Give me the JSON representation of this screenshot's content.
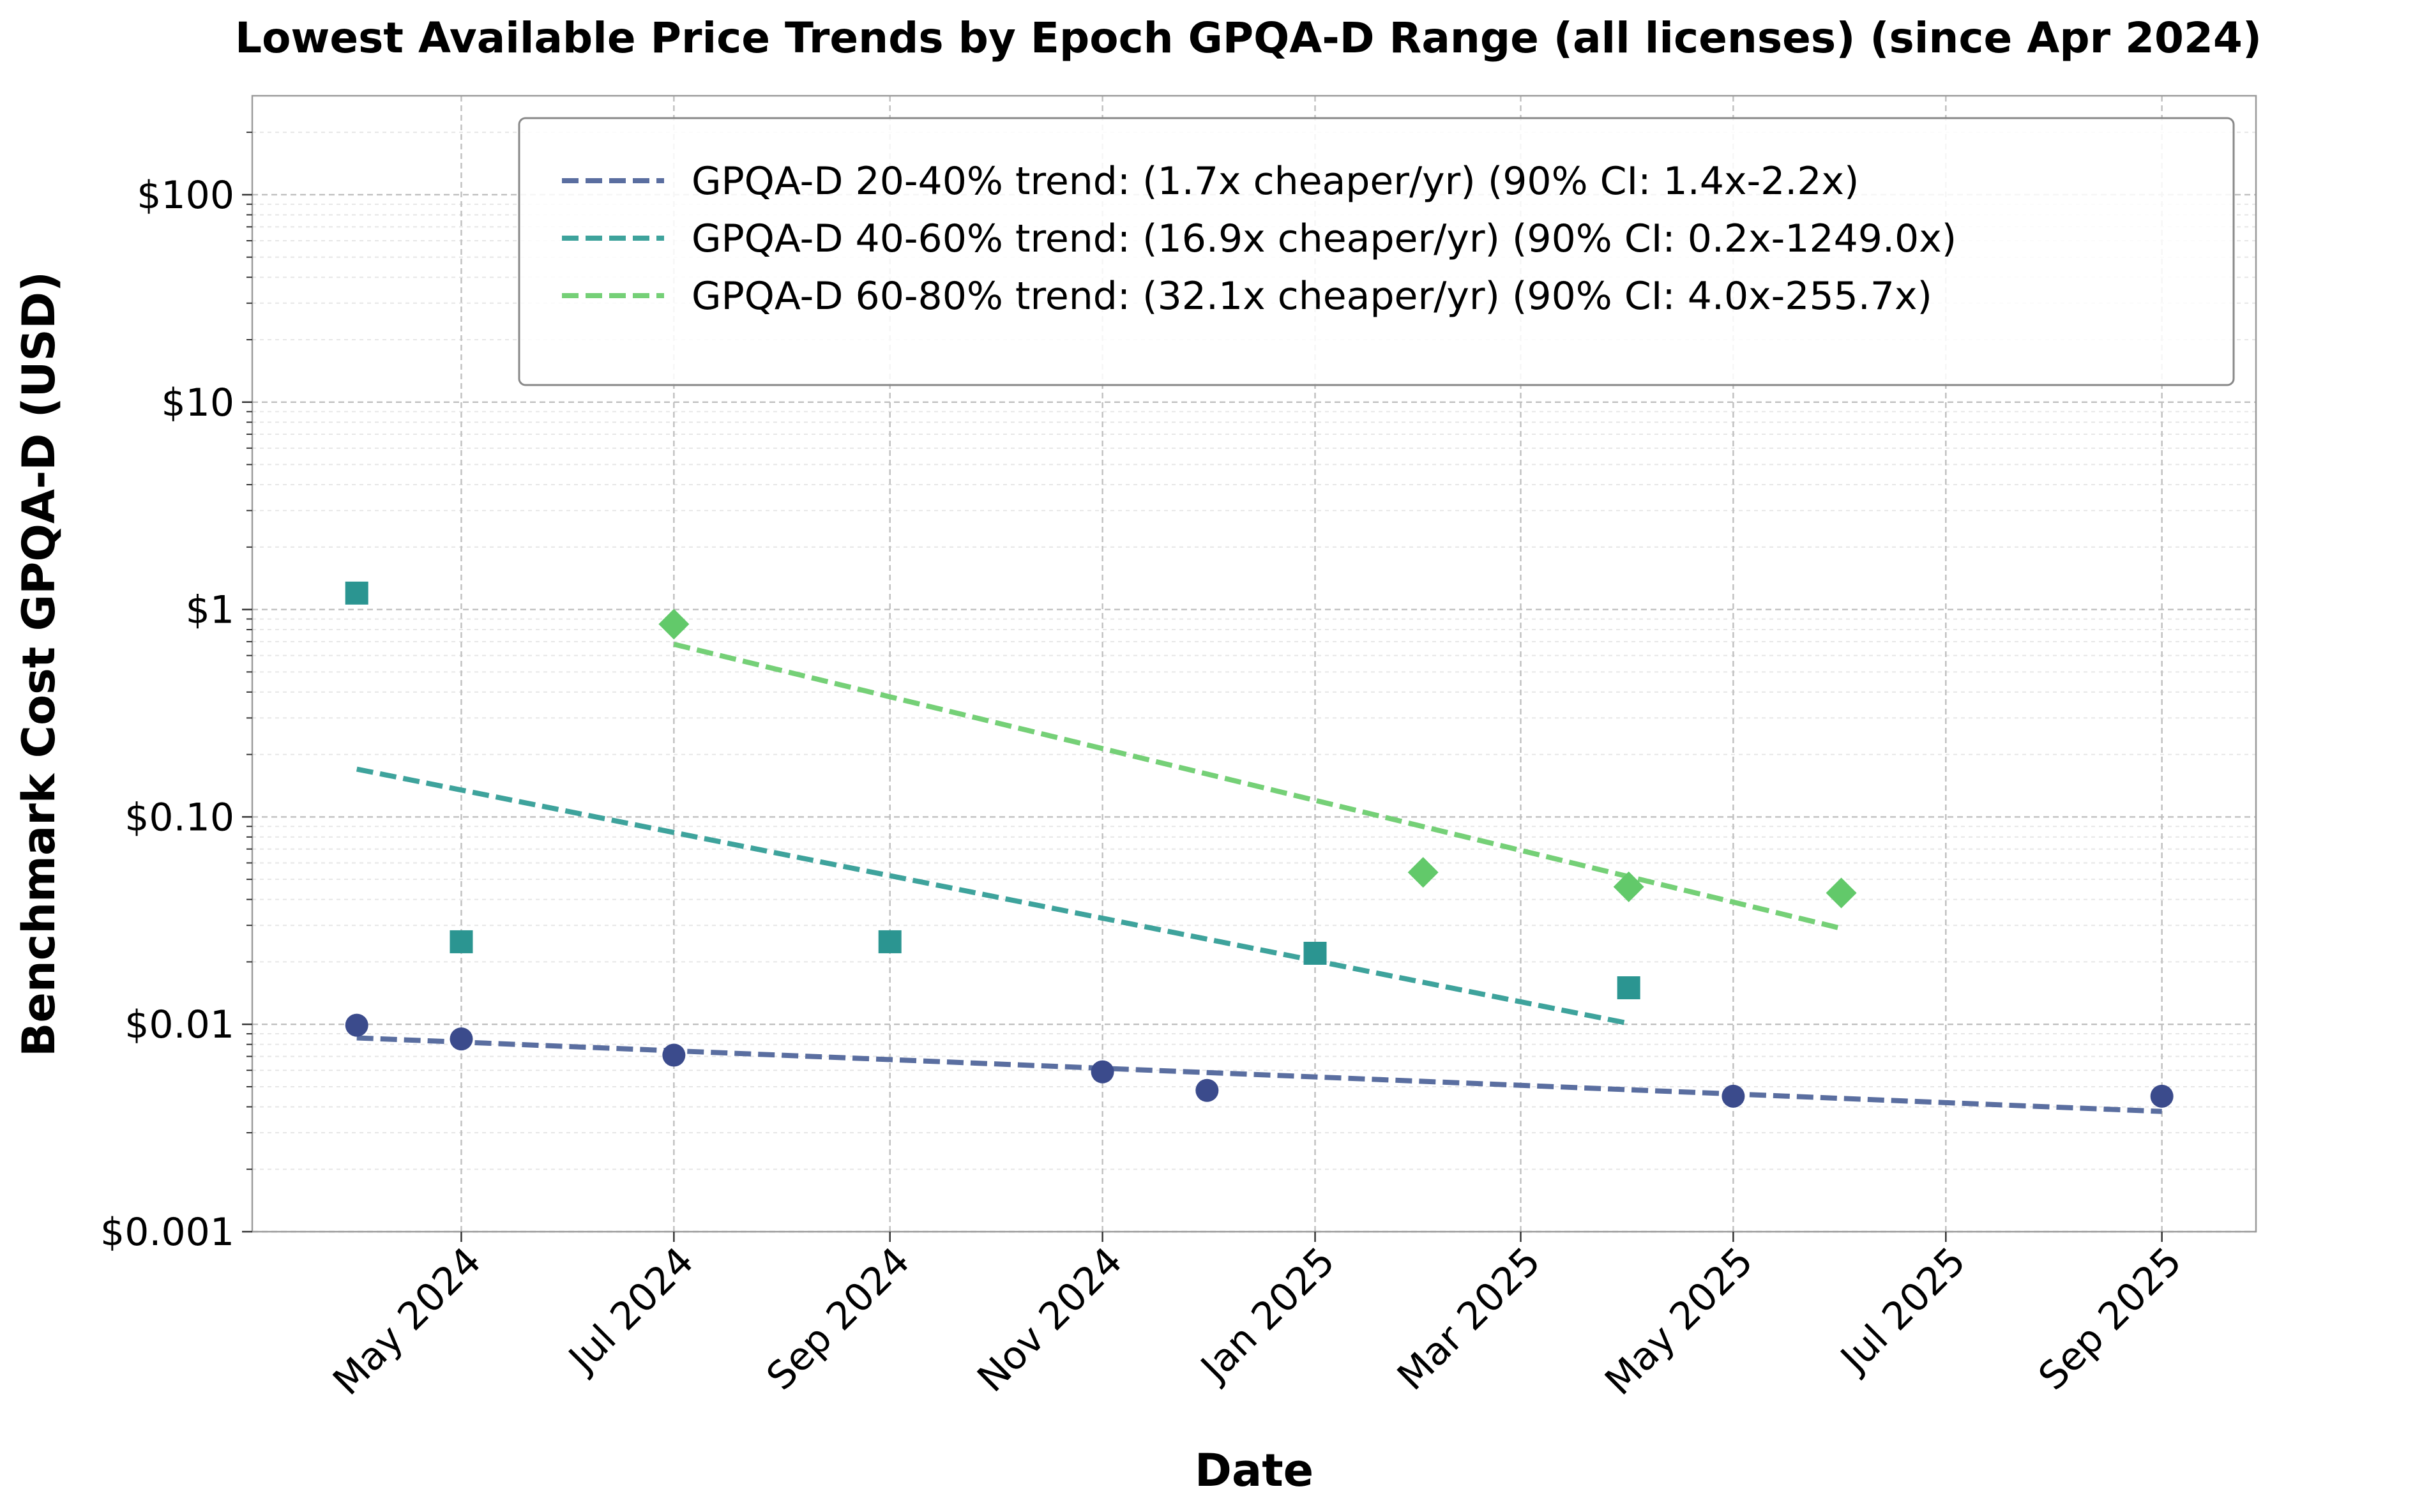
{
  "chart_data": {
    "type": "scatter",
    "title": "Lowest Available Price Trends by Epoch GPQA-D Range (all licenses) (since Apr 2024)",
    "xlabel": "Date",
    "ylabel": "Benchmark Cost GPQA-D (USD)",
    "y_scale": "log",
    "ylim": [
      0.001,
      300
    ],
    "xlim": [
      "2024-03-02",
      "2025-09-28"
    ],
    "grid": true,
    "legend_position": "upper-right",
    "x_ticks": [
      {
        "date": "2024-05-01",
        "label": "May 2024"
      },
      {
        "date": "2024-07-01",
        "label": "Jul 2024"
      },
      {
        "date": "2024-09-01",
        "label": "Sep 2024"
      },
      {
        "date": "2024-11-01",
        "label": "Nov 2024"
      },
      {
        "date": "2025-01-01",
        "label": "Jan 2025"
      },
      {
        "date": "2025-03-01",
        "label": "Mar 2025"
      },
      {
        "date": "2025-05-01",
        "label": "May 2025"
      },
      {
        "date": "2025-07-01",
        "label": "Jul 2025"
      },
      {
        "date": "2025-09-01",
        "label": "Sep 2025"
      }
    ],
    "y_ticks": [
      {
        "value": 0.001,
        "label": "$0.001"
      },
      {
        "value": 0.01,
        "label": "$0.01"
      },
      {
        "value": 0.1,
        "label": "$0.10"
      },
      {
        "value": 1,
        "label": "$1"
      },
      {
        "value": 10,
        "label": "$10"
      },
      {
        "value": 100,
        "label": "$100"
      }
    ],
    "series": [
      {
        "name": "GPQA-D 20-40%",
        "color": "#3b4b8c",
        "marker": "circle",
        "points": [
          {
            "x": "2024-04-01",
            "y": 0.0099
          },
          {
            "x": "2024-05-01",
            "y": 0.0085
          },
          {
            "x": "2024-07-01",
            "y": 0.0071
          },
          {
            "x": "2024-11-01",
            "y": 0.0059
          },
          {
            "x": "2024-12-01",
            "y": 0.0048
          },
          {
            "x": "2025-05-01",
            "y": 0.0045
          },
          {
            "x": "2025-09-01",
            "y": 0.0045
          }
        ],
        "trend": {
          "label": "GPQA-D 20-40% trend: (1.7x cheaper/yr) (90% CI: 1.4x-2.2x)",
          "color": "#5a6ea0",
          "start": {
            "x": "2024-04-01",
            "y": 0.0086
          },
          "end": {
            "x": "2025-09-01",
            "y": 0.0038
          }
        }
      },
      {
        "name": "GPQA-D 40-60%",
        "color": "#2b9591",
        "marker": "square",
        "points": [
          {
            "x": "2024-04-01",
            "y": 1.2
          },
          {
            "x": "2024-05-01",
            "y": 0.025
          },
          {
            "x": "2024-09-01",
            "y": 0.025
          },
          {
            "x": "2025-01-01",
            "y": 0.022
          },
          {
            "x": "2025-04-01",
            "y": 0.015
          }
        ],
        "trend": {
          "label": "GPQA-D 40-60% trend: (16.9x cheaper/yr) (90% CI: 0.2x-1249.0x)",
          "color": "#3ea39c",
          "start": {
            "x": "2024-04-01",
            "y": 0.17
          },
          "end": {
            "x": "2025-04-01",
            "y": 0.0101
          }
        }
      },
      {
        "name": "GPQA-D 60-80%",
        "color": "#62c96a",
        "marker": "diamond",
        "points": [
          {
            "x": "2024-07-01",
            "y": 0.85
          },
          {
            "x": "2025-02-01",
            "y": 0.054
          },
          {
            "x": "2025-04-01",
            "y": 0.046
          },
          {
            "x": "2025-06-01",
            "y": 0.043
          }
        ],
        "trend": {
          "label": "GPQA-D 60-80% trend: (32.1x cheaper/yr) (90% CI: 4.0x-255.7x)",
          "color": "#75d077",
          "start": {
            "x": "2024-07-01",
            "y": 0.68
          },
          "end": {
            "x": "2025-06-01",
            "y": 0.029
          }
        }
      }
    ]
  }
}
